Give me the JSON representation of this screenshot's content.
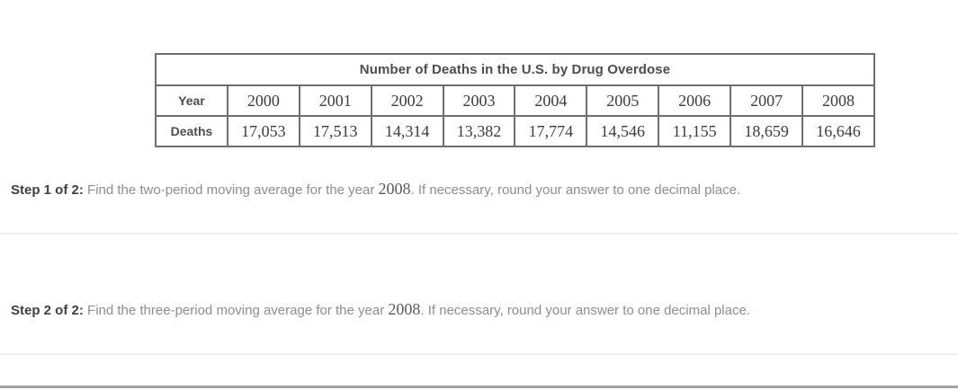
{
  "table": {
    "title": "Number of Deaths in the U.S. by Drug Overdose",
    "row_headers": {
      "year": "Year",
      "deaths": "Deaths"
    },
    "years": [
      "2000",
      "2001",
      "2002",
      "2003",
      "2004",
      "2005",
      "2006",
      "2007",
      "2008"
    ],
    "deaths": [
      "17,053",
      "17,513",
      "14,314",
      "13,382",
      "17,774",
      "14,546",
      "11,155",
      "18,659",
      "16,646"
    ]
  },
  "steps": {
    "step1": {
      "label": "Step 1 of 2:",
      "text_before": " Find the two-period moving average for the year ",
      "year": "2008",
      "text_after": ". If necessary, round your answer to one decimal place."
    },
    "step2": {
      "label": "Step 2 of 2:",
      "text_before": " Find the three-period moving average for the year ",
      "year": "2008",
      "text_after": ". If necessary, round your answer to one decimal place."
    }
  },
  "colors": {
    "table_border": "#6e6e6e",
    "table_header_text": "#4d4d4d",
    "table_number_text": "#3c3c3c",
    "step_label_text": "#3f3f3f",
    "step_body_text": "#8d8d8d",
    "divider": "#f0f0f0",
    "bottom_bar": "#a2a2a2",
    "background": "#ffffff"
  }
}
